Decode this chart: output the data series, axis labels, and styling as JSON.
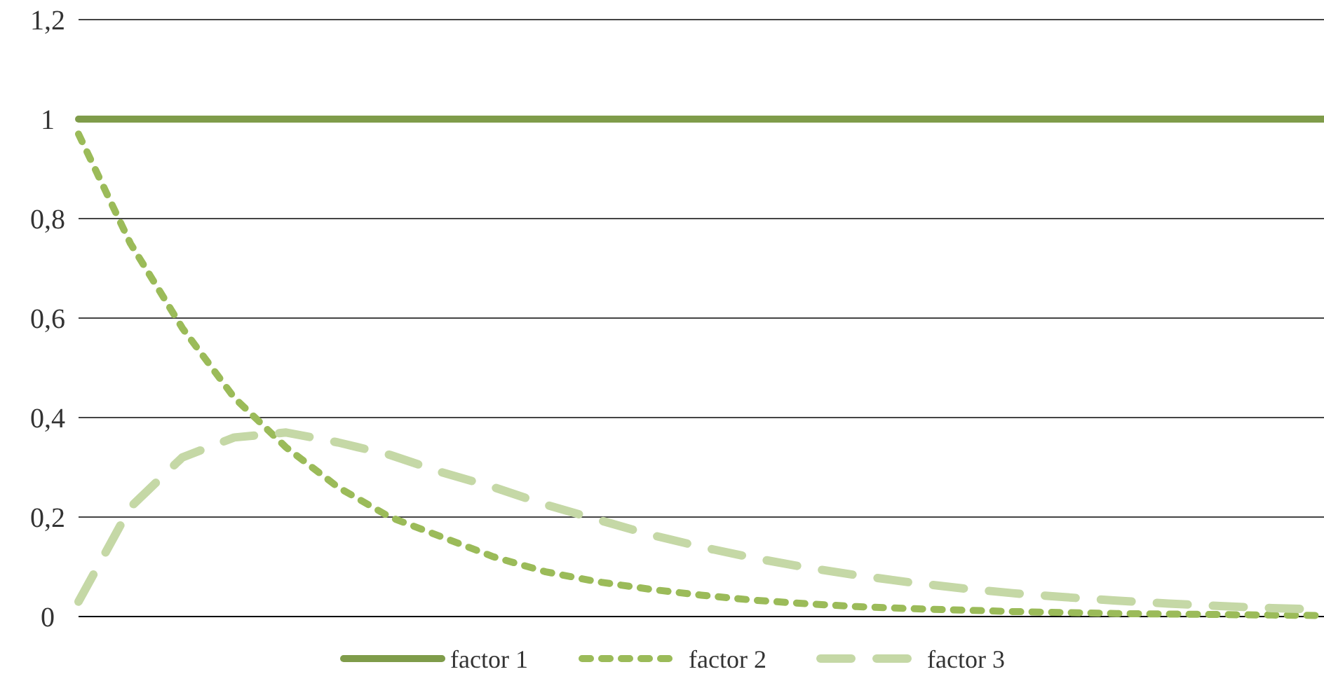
{
  "chart_data": {
    "type": "line",
    "categories": [
      null,
      null,
      null,
      null,
      null,
      null,
      null,
      null,
      null,
      null,
      null,
      null,
      null,
      null,
      null,
      null,
      null,
      null,
      null,
      null,
      null,
      null,
      null,
      null,
      null
    ],
    "series": [
      {
        "name": "factor 1",
        "color": "#7f9c4a",
        "line_style": "solid",
        "values": [
          1,
          1,
          1,
          1,
          1,
          1,
          1,
          1,
          1,
          1,
          1,
          1,
          1,
          1,
          1,
          1,
          1,
          1,
          1,
          1,
          1,
          1,
          1,
          1,
          1
        ]
      },
      {
        "name": "factor 2",
        "color": "#9bbb59",
        "line_style": "dotted",
        "values": [
          0.97,
          0.75,
          0.58,
          0.44,
          0.34,
          0.26,
          0.2,
          0.16,
          0.12,
          0.09,
          0.07,
          0.055,
          0.043,
          0.033,
          0.026,
          0.02,
          0.016,
          0.013,
          0.01,
          0.008,
          0.006,
          0.005,
          0.004,
          0.003,
          0.002
        ]
      },
      {
        "name": "factor 3",
        "color": "#c5d8a6",
        "line_style": "dashed",
        "values": [
          0.03,
          0.22,
          0.32,
          0.36,
          0.37,
          0.35,
          0.325,
          0.29,
          0.26,
          0.225,
          0.195,
          0.165,
          0.14,
          0.118,
          0.099,
          0.083,
          0.069,
          0.057,
          0.047,
          0.039,
          0.032,
          0.026,
          0.021,
          0.017,
          0.014
        ]
      }
    ],
    "ylim": [
      0,
      1.2
    ],
    "yticks": [
      0,
      {
        "value": 0.2,
        "label": "0,2"
      },
      {
        "value": 0.4,
        "label": "0,4"
      },
      {
        "value": 0.6,
        "label": "0,6"
      },
      {
        "value": 0.8,
        "label": "0,8"
      },
      1,
      {
        "value": 1.2,
        "label": "1,2"
      }
    ],
    "grid": "y",
    "legend": "bottom",
    "marker": "none"
  }
}
